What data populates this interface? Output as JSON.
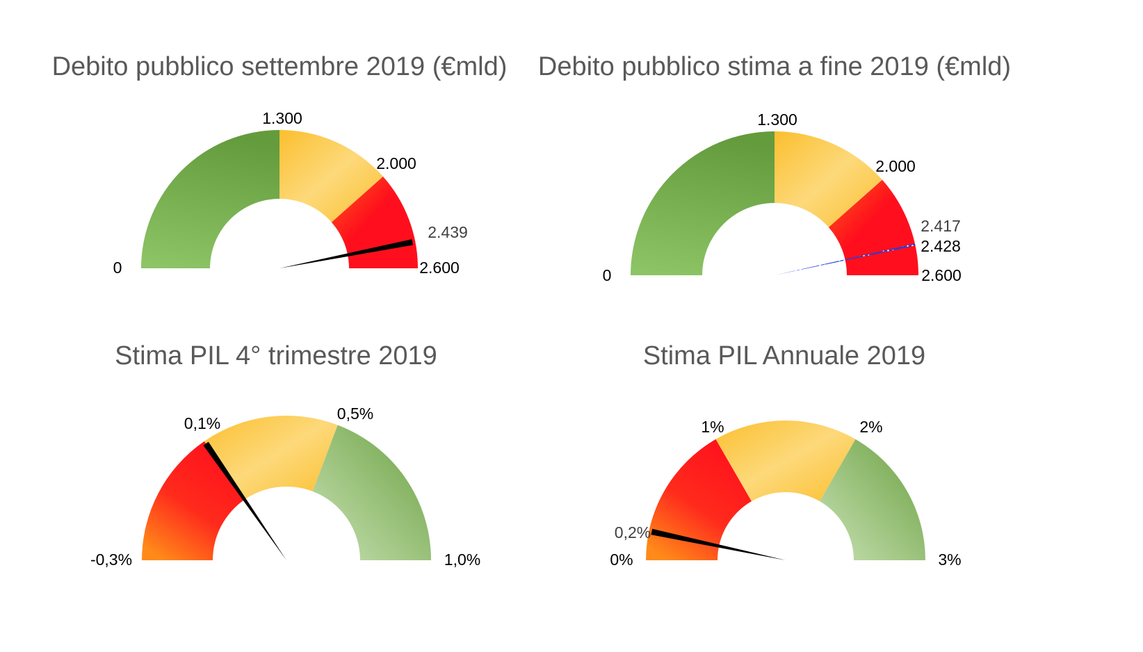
{
  "colors": {
    "green": "#72A845",
    "green_light": "#A9D18E",
    "yellow": "#FBBF2F",
    "yellow_light": "#FDD97A",
    "red": "#FF0F1D",
    "orange": "#FF7A1A",
    "needle": "#000000",
    "blue": "#1F3FE0",
    "title": "#595959"
  },
  "chart_data": [
    {
      "type": "gauge",
      "title": "Debito pubblico settembre 2019 (€mld)",
      "min": 0,
      "max": 2600,
      "bands": [
        {
          "from": 0,
          "to": 1300,
          "color": "green"
        },
        {
          "from": 1300,
          "to": 2000,
          "color": "yellow"
        },
        {
          "from": 2000,
          "to": 2600,
          "color": "red"
        }
      ],
      "tick_labels": {
        "min": "0",
        "b1": "1.300",
        "b2": "2.000",
        "max": "2.600"
      },
      "needle": {
        "value": 2439,
        "label": "2.439"
      }
    },
    {
      "type": "gauge",
      "title": "Debito pubblico stima a fine 2019 (€mld)",
      "min": 0,
      "max": 2600,
      "bands": [
        {
          "from": 0,
          "to": 1300,
          "color": "green"
        },
        {
          "from": 1300,
          "to": 2000,
          "color": "yellow"
        },
        {
          "from": 2000,
          "to": 2600,
          "color": "red"
        }
      ],
      "tick_labels": {
        "min": "0",
        "b1": "1.300",
        "b2": "2.000",
        "max": "2.600"
      },
      "range": {
        "from": 2417,
        "to": 2428,
        "label_from": "2.417",
        "label_to": "2.428"
      }
    },
    {
      "type": "gauge",
      "title": "Stima PIL 4° trimestre 2019",
      "min": -0.3,
      "max": 1.0,
      "bands": [
        {
          "from": -0.3,
          "to": 0.1,
          "color": "red"
        },
        {
          "from": 0.1,
          "to": 0.5,
          "color": "yellow"
        },
        {
          "from": 0.5,
          "to": 1.0,
          "color": "green"
        }
      ],
      "tick_labels": {
        "min": "-0,3%",
        "b1": "0,1%",
        "b2": "0,5%",
        "max": "1,0%"
      },
      "needle": {
        "value": 0.1,
        "label": ""
      }
    },
    {
      "type": "gauge",
      "title": "Stima PIL Annuale 2019",
      "min": 0,
      "max": 3,
      "bands": [
        {
          "from": 0,
          "to": 1,
          "color": "red"
        },
        {
          "from": 1,
          "to": 2,
          "color": "yellow"
        },
        {
          "from": 2,
          "to": 3,
          "color": "green"
        }
      ],
      "tick_labels": {
        "min": "0%",
        "b1": "1%",
        "b2": "2%",
        "max": "3%"
      },
      "needle": {
        "value": 0.2,
        "label": "0,2%"
      }
    }
  ]
}
